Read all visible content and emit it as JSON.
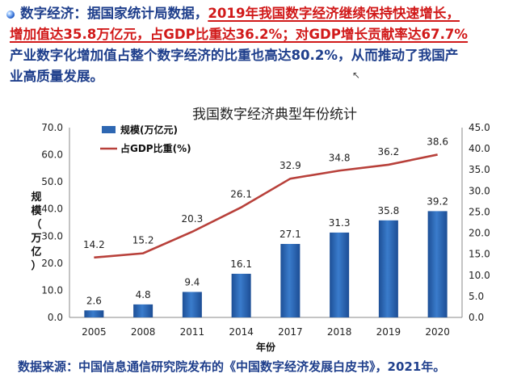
{
  "slide": {
    "seg1": "数字经济：据国家统计局数据，",
    "seg2": "2019年我国数字经济继续保持快速增长，",
    "seg3": "增加值达35.8万亿元，占GDP比重达36.2%；对GDP增长贡献率达67.7%",
    "seg4": "产业数字化增加值占整个数字经济的比重也高达80.2%，从而推动了我国产",
    "seg5": "业高质量发展。",
    "source": "数据来源：中国信息通信研究院发布的《中国数字经济发展白皮书》，2021年。",
    "colors": {
      "text": "#1f3f8c",
      "highlight": "#d11a1a"
    }
  },
  "chart_data": {
    "type": "bar",
    "title": "我国数字经济典型年份统计",
    "categories": [
      "2005",
      "2008",
      "2011",
      "2014",
      "2017",
      "2018",
      "2019",
      "2020"
    ],
    "xlabel": "年份",
    "ylabel": "规模（万亿）",
    "ylim": [
      0,
      70
    ],
    "y2lim": [
      0,
      45
    ],
    "yticks": [
      "0.0",
      "10.0",
      "20.0",
      "30.0",
      "40.0",
      "50.0",
      "60.0",
      "70.0"
    ],
    "y2ticks": [
      "0.0",
      "5.0",
      "10.0",
      "15.0",
      "20.0",
      "25.0",
      "30.0",
      "35.0",
      "40.0",
      "45.0"
    ],
    "legend_position": "top-left",
    "series": [
      {
        "name": "规模(万亿元)",
        "type": "bar",
        "axis": "left",
        "color": "#2e67b2",
        "values": [
          2.6,
          4.8,
          9.4,
          16.1,
          27.1,
          31.3,
          35.8,
          39.2
        ],
        "labels": [
          "2.6",
          "4.8",
          "9.4",
          "16.1",
          "27.1",
          "31.3",
          "35.8",
          "39.2"
        ]
      },
      {
        "name": "占GDP比重(%)",
        "type": "line",
        "axis": "right",
        "color": "#b8403a",
        "values": [
          14.2,
          15.2,
          20.3,
          26.1,
          32.9,
          34.8,
          36.2,
          38.6
        ],
        "labels": [
          "14.2",
          "15.2",
          "20.3",
          "26.1",
          "32.9",
          "34.8",
          "36.2",
          "38.6"
        ]
      }
    ]
  }
}
